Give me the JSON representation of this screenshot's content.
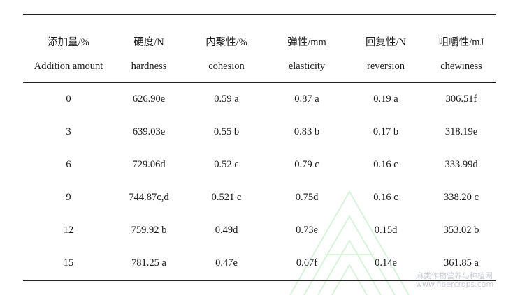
{
  "table": {
    "headers_zh": [
      "添加量/%",
      "硬度/N",
      "内聚性/%",
      "弹性/mm",
      "回复性/N",
      "咀嚼性/mJ"
    ],
    "headers_en": [
      "Addition amount",
      "hardness",
      "cohesion",
      "elasticity",
      "reversion",
      "chewiness"
    ],
    "rows": [
      [
        "0",
        "626.90e",
        "0.59 a",
        "0.87 a",
        "0.19 a",
        "306.51f"
      ],
      [
        "3",
        "639.03e",
        "0.55 b",
        "0.83 b",
        "0.17 b",
        "318.19e"
      ],
      [
        "6",
        "729.06d",
        "0.52 c",
        "0.79 c",
        "0.16 c",
        "333.99d"
      ],
      [
        "9",
        "744.87c,d",
        "0.521 c",
        "0.75d",
        "0.16 c",
        "338.20 c"
      ],
      [
        "12",
        "759.92 b",
        "0.49d",
        "0.73e",
        "0.15d",
        "353.02 b"
      ],
      [
        "15",
        "781.25 a",
        "0.47e",
        "0.67f",
        "0.14e",
        "361.85 a"
      ]
    ]
  },
  "watermark": {
    "line1": "麻类作物营养与种植网",
    "line2": "www.fibercrops.com"
  },
  "colors": {
    "rule": "#222222",
    "watermark": "#c8ccd2",
    "watermark_logo": "#d9f2dc"
  }
}
